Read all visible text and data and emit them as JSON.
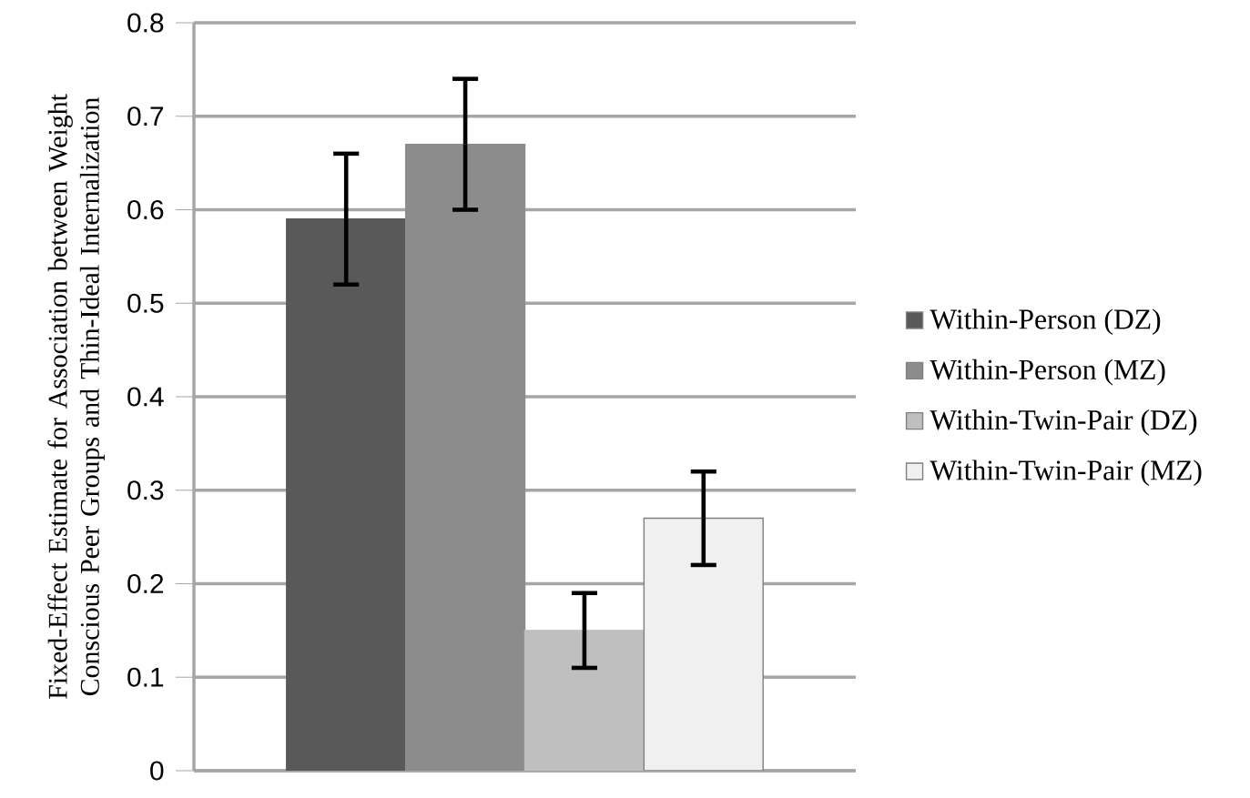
{
  "chart_data": {
    "type": "bar",
    "ylabel": "Fixed-Effect Estimate for Association between Weight Conscious Peer Groups and Thin-Ideal Internalization",
    "categories": [
      null
    ],
    "series": [
      {
        "name": "Within-Person (DZ)",
        "color": "#595959",
        "values": [
          0.59
        ],
        "errors": [
          0.07
        ]
      },
      {
        "name": "Within-Person (MZ)",
        "color": "#8c8c8c",
        "values": [
          0.67
        ],
        "errors": [
          0.07
        ]
      },
      {
        "name": "Within-Twin-Pair (DZ)",
        "color": "#bfbfbf",
        "values": [
          0.15
        ],
        "errors": [
          0.04
        ]
      },
      {
        "name": "Within-Twin-Pair (MZ)",
        "color": "#f0f0f0",
        "values": [
          0.27
        ],
        "errors": [
          0.05
        ]
      }
    ],
    "ylim": [
      0,
      0.8
    ],
    "yticks": [
      0,
      0.1,
      0.2,
      0.3,
      0.4,
      0.5,
      0.6,
      0.7,
      0.8
    ],
    "grid": "y",
    "legend": "right"
  }
}
